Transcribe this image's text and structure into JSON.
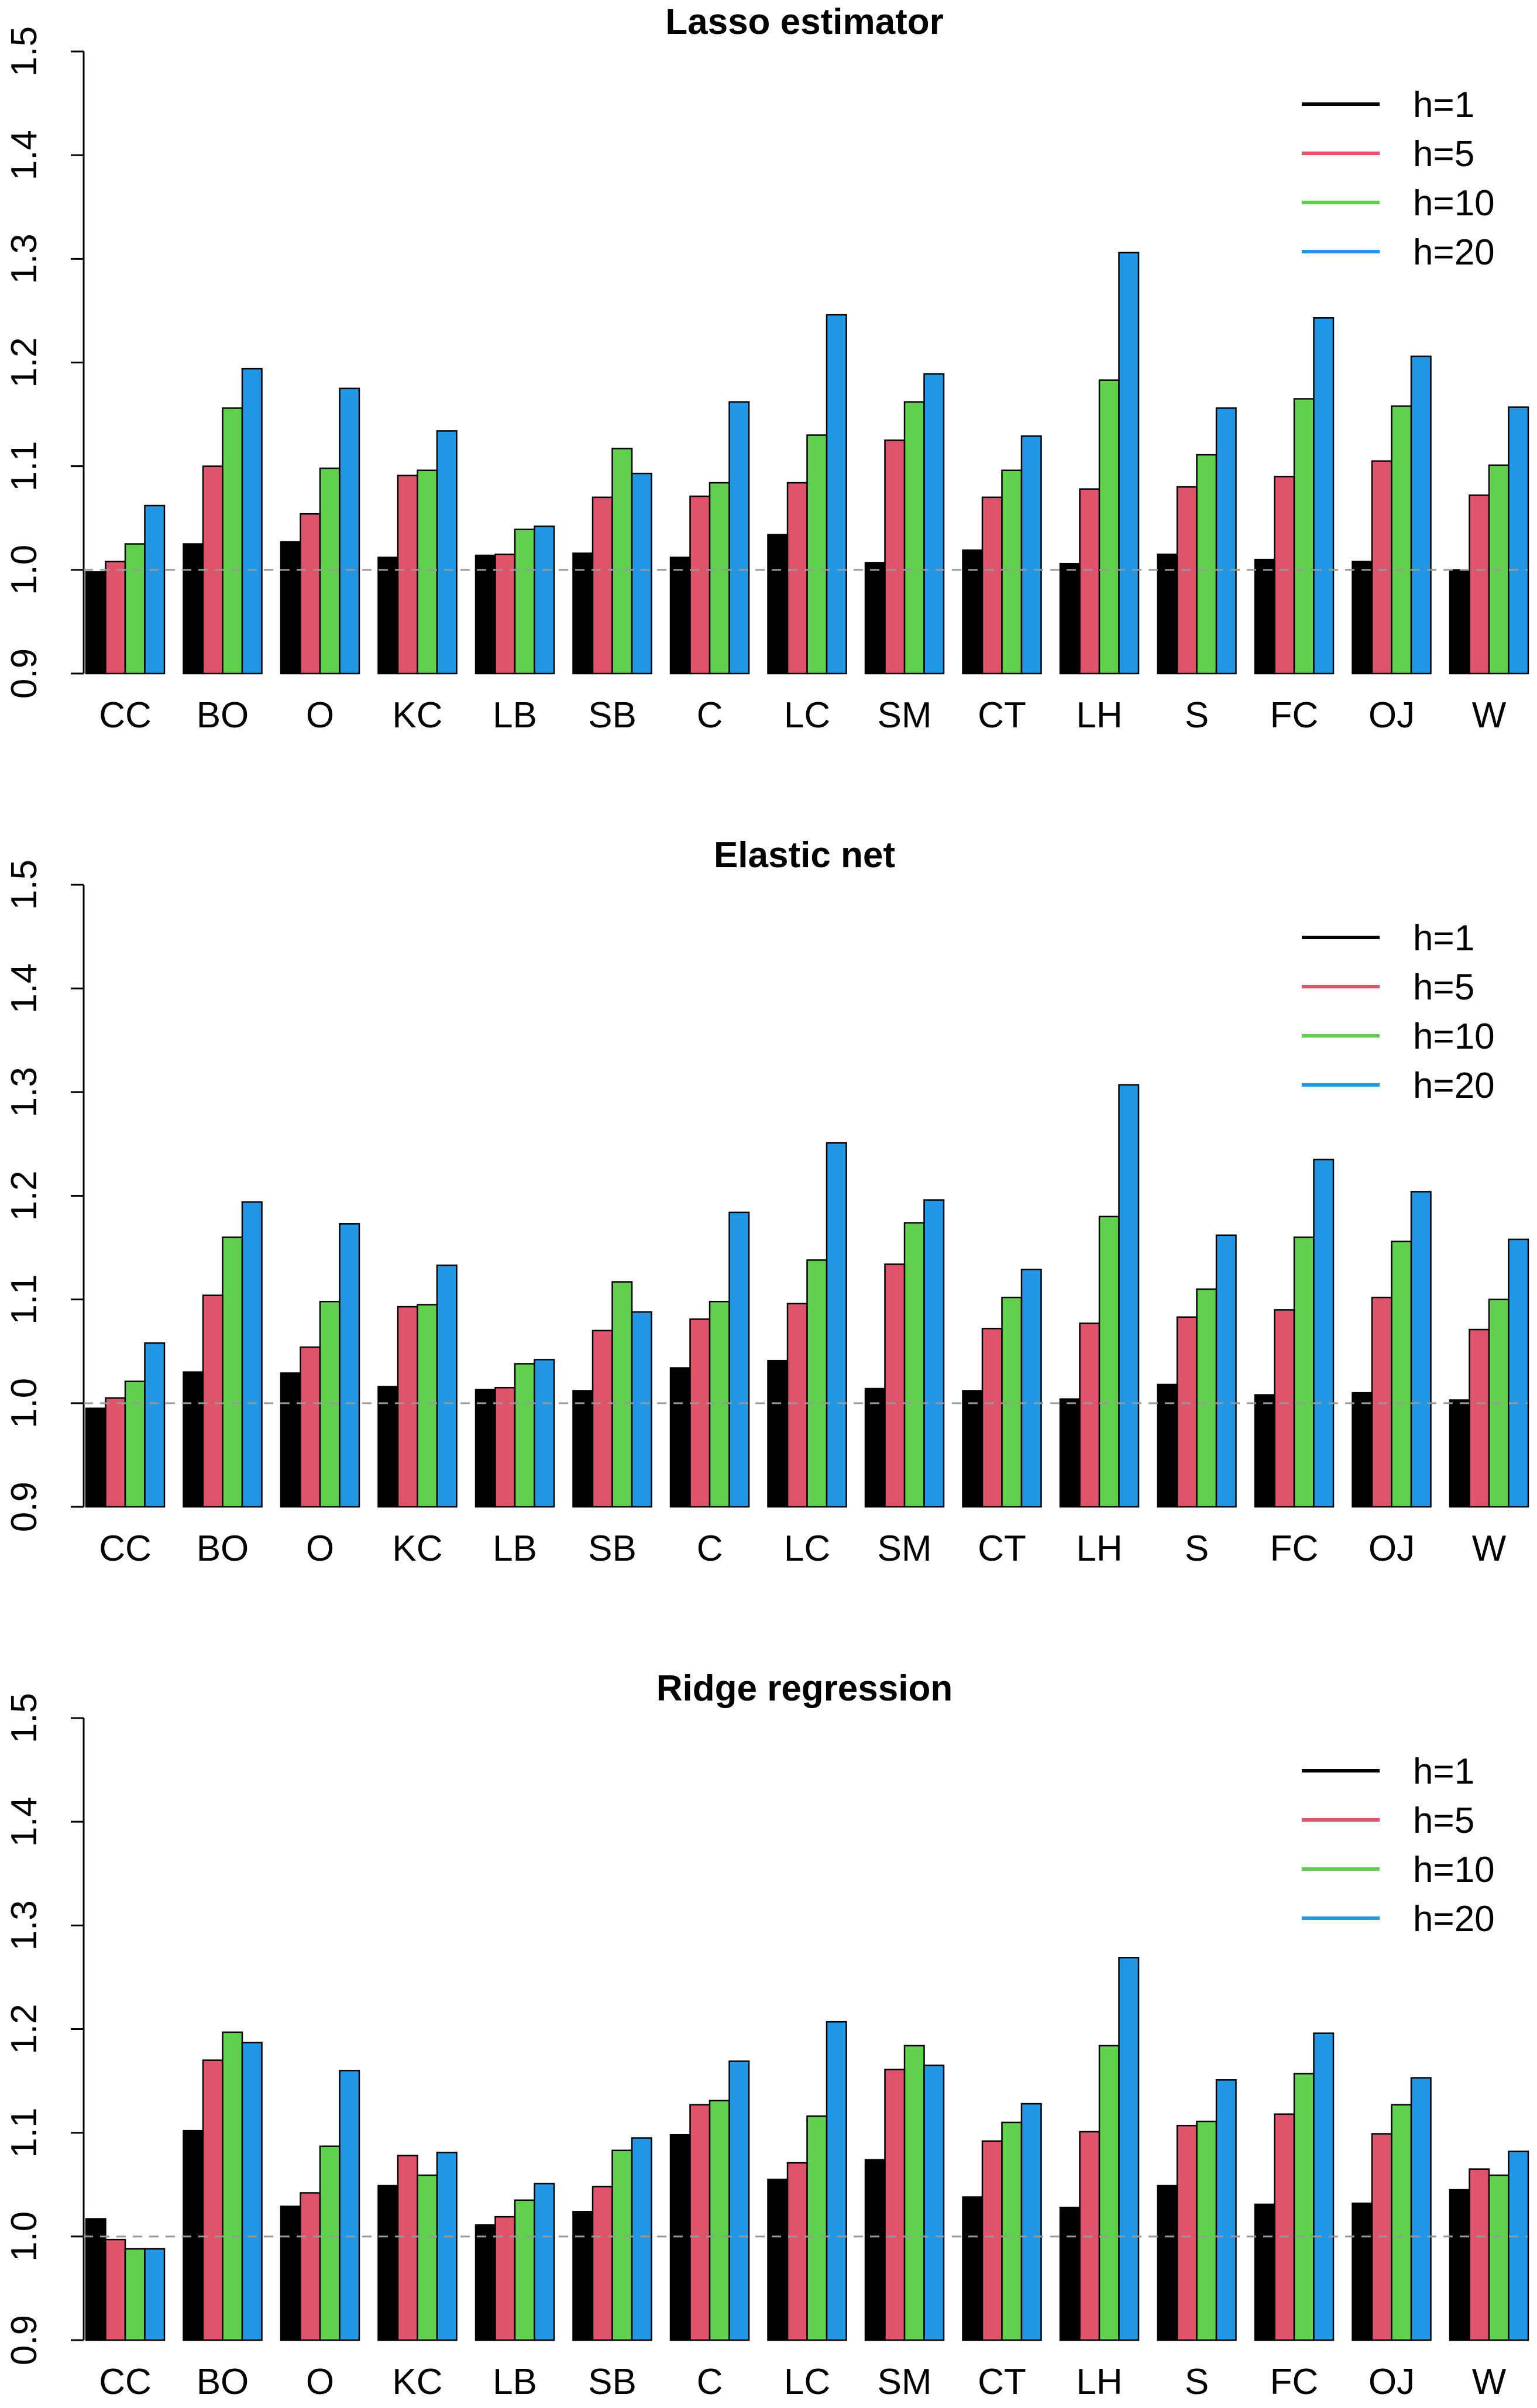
{
  "chart_data": [
    {
      "type": "bar",
      "title": "Lasso estimator",
      "categories": [
        "CC",
        "BO",
        "O",
        "KC",
        "LB",
        "SB",
        "C",
        "LC",
        "SM",
        "CT",
        "LH",
        "S",
        "FC",
        "OJ",
        "W"
      ],
      "series": [
        {
          "name": "h=1",
          "color": "#000000",
          "values": [
            0.998,
            1.025,
            1.027,
            1.012,
            1.014,
            1.016,
            1.012,
            1.034,
            1.007,
            1.019,
            1.006,
            1.015,
            1.01,
            1.008,
            1.0
          ]
        },
        {
          "name": "h=5",
          "color": "#df536b",
          "values": [
            1.008,
            1.1,
            1.054,
            1.091,
            1.015,
            1.07,
            1.071,
            1.084,
            1.125,
            1.07,
            1.078,
            1.08,
            1.09,
            1.105,
            1.072
          ]
        },
        {
          "name": "h=10",
          "color": "#61d04f",
          "values": [
            1.025,
            1.156,
            1.098,
            1.096,
            1.039,
            1.117,
            1.084,
            1.13,
            1.162,
            1.096,
            1.183,
            1.111,
            1.165,
            1.158,
            1.101
          ]
        },
        {
          "name": "h=20",
          "color": "#2297e6",
          "values": [
            1.062,
            1.194,
            1.175,
            1.134,
            1.042,
            1.093,
            1.162,
            1.246,
            1.189,
            1.129,
            1.306,
            1.156,
            1.243,
            1.206,
            1.157
          ]
        }
      ],
      "yticks": [
        "0.9",
        "1.0",
        "1.1",
        "1.2",
        "1.3",
        "1.4",
        "1.5"
      ],
      "ylim": [
        0.9,
        1.5
      ],
      "reference_line": 1.0,
      "xlabel": "",
      "ylabel": "",
      "legend_position": "top-right",
      "grid": false
    },
    {
      "type": "bar",
      "title": "Elastic net",
      "categories": [
        "CC",
        "BO",
        "O",
        "KC",
        "LB",
        "SB",
        "C",
        "LC",
        "SM",
        "CT",
        "LH",
        "S",
        "FC",
        "OJ",
        "W"
      ],
      "series": [
        {
          "name": "h=1",
          "color": "#000000",
          "values": [
            0.995,
            1.03,
            1.029,
            1.016,
            1.013,
            1.012,
            1.034,
            1.041,
            1.014,
            1.012,
            1.004,
            1.018,
            1.008,
            1.01,
            1.003
          ]
        },
        {
          "name": "h=5",
          "color": "#df536b",
          "values": [
            1.005,
            1.104,
            1.054,
            1.093,
            1.015,
            1.07,
            1.081,
            1.096,
            1.134,
            1.072,
            1.077,
            1.083,
            1.09,
            1.102,
            1.071
          ]
        },
        {
          "name": "h=10",
          "color": "#61d04f",
          "values": [
            1.021,
            1.16,
            1.098,
            1.095,
            1.038,
            1.117,
            1.098,
            1.138,
            1.174,
            1.102,
            1.18,
            1.11,
            1.16,
            1.156,
            1.1
          ]
        },
        {
          "name": "h=20",
          "color": "#2297e6",
          "values": [
            1.058,
            1.194,
            1.173,
            1.133,
            1.042,
            1.088,
            1.184,
            1.251,
            1.196,
            1.129,
            1.307,
            1.162,
            1.235,
            1.204,
            1.158
          ]
        }
      ],
      "yticks": [
        "0.9",
        "1.0",
        "1.1",
        "1.2",
        "1.3",
        "1.4",
        "1.5"
      ],
      "ylim": [
        0.9,
        1.5
      ],
      "reference_line": 1.0,
      "xlabel": "",
      "ylabel": "",
      "legend_position": "top-right",
      "grid": false
    },
    {
      "type": "bar",
      "title": "Ridge regression",
      "categories": [
        "CC",
        "BO",
        "O",
        "KC",
        "LB",
        "SB",
        "C",
        "LC",
        "SM",
        "CT",
        "LH",
        "S",
        "FC",
        "OJ",
        "W"
      ],
      "series": [
        {
          "name": "h=1",
          "color": "#000000",
          "values": [
            1.017,
            1.102,
            1.029,
            1.049,
            1.011,
            1.024,
            1.098,
            1.055,
            1.074,
            1.038,
            1.028,
            1.049,
            1.031,
            1.032,
            1.045
          ]
        },
        {
          "name": "h=5",
          "color": "#df536b",
          "values": [
            0.997,
            1.17,
            1.042,
            1.078,
            1.019,
            1.048,
            1.127,
            1.071,
            1.161,
            1.092,
            1.101,
            1.107,
            1.118,
            1.099,
            1.065
          ]
        },
        {
          "name": "h=10",
          "color": "#61d04f",
          "values": [
            0.988,
            1.197,
            1.087,
            1.059,
            1.035,
            1.083,
            1.131,
            1.116,
            1.184,
            1.11,
            1.184,
            1.111,
            1.157,
            1.127,
            1.059
          ]
        },
        {
          "name": "h=20",
          "color": "#2297e6",
          "values": [
            0.988,
            1.187,
            1.16,
            1.081,
            1.051,
            1.095,
            1.169,
            1.207,
            1.165,
            1.128,
            1.269,
            1.151,
            1.196,
            1.153,
            1.082
          ]
        }
      ],
      "yticks": [
        "0.9",
        "1.0",
        "1.1",
        "1.2",
        "1.3",
        "1.4",
        "1.5"
      ],
      "ylim": [
        0.9,
        1.5
      ],
      "reference_line": 1.0,
      "xlabel": "",
      "ylabel": "",
      "legend_position": "top-right",
      "grid": false
    }
  ]
}
